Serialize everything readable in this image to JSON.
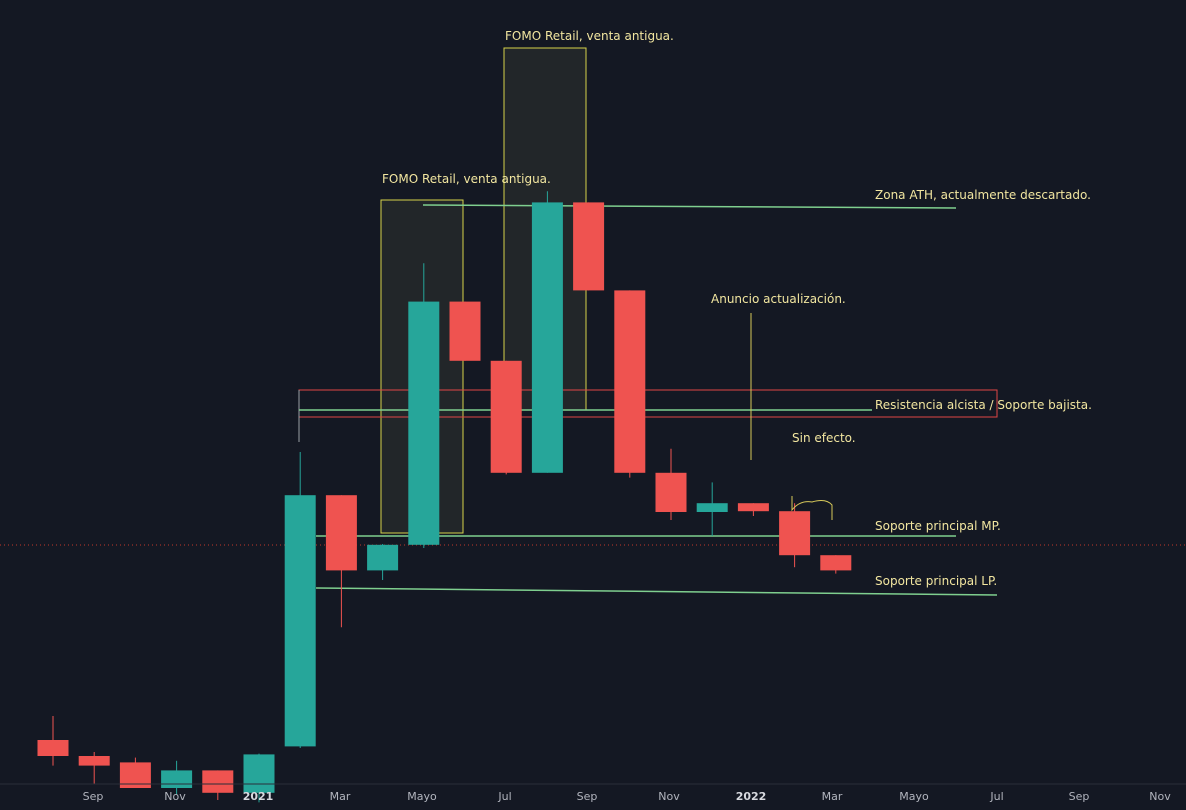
{
  "chart_data": {
    "type": "candlestick",
    "interval": "monthly",
    "colors": {
      "up": "#26a69a",
      "down": "#ef5350",
      "background": "#141823",
      "annotation": "#f2e6a0",
      "line": "#7fcf8f",
      "zone": "#e04646",
      "box": "#d6d24a"
    },
    "x_axis": {
      "labels": [
        "Sep",
        "Nov",
        "2021",
        "Mar",
        "Mayo",
        "Jul",
        "Sep",
        "Nov",
        "2022",
        "Mar",
        "Mayo",
        "Jul",
        "Sep",
        "Nov"
      ],
      "year_labels": [
        "2021",
        "2022"
      ]
    },
    "candles": [
      {
        "date": "2020-08",
        "open": 700,
        "high": 730,
        "low": 668,
        "close": 680,
        "dir": "down"
      },
      {
        "date": "2020-09",
        "open": 680,
        "high": 685,
        "low": 645,
        "close": 668,
        "dir": "down"
      },
      {
        "date": "2020-10",
        "open": 672,
        "high": 678,
        "low": 640,
        "close": 640,
        "dir": "down"
      },
      {
        "date": "2020-11",
        "open": 640,
        "high": 674,
        "low": 632,
        "close": 662,
        "dir": "up"
      },
      {
        "date": "2020-12",
        "open": 662,
        "high": 662,
        "low": 625,
        "close": 634,
        "dir": "down"
      },
      {
        "date": "2021-01",
        "open": 634,
        "high": 683,
        "low": 622,
        "close": 682,
        "dir": "up"
      },
      {
        "date": "2021-02",
        "open": 692,
        "high": 1060,
        "low": 690,
        "close": 1006,
        "dir": "up"
      },
      {
        "date": "2021-03",
        "open": 1006,
        "high": 1006,
        "low": 841,
        "close": 912,
        "dir": "down"
      },
      {
        "date": "2021-04",
        "open": 912,
        "high": 945,
        "low": 900,
        "close": 944,
        "dir": "up"
      },
      {
        "date": "2021-05",
        "open": 944,
        "high": 1296,
        "low": 940,
        "close": 1248,
        "dir": "up"
      },
      {
        "date": "2021-06",
        "open": 1248,
        "high": 1248,
        "low": 1174,
        "close": 1174,
        "dir": "down"
      },
      {
        "date": "2021-07",
        "open": 1174,
        "high": 1174,
        "low": 1032,
        "close": 1034,
        "dir": "down"
      },
      {
        "date": "2021-08",
        "open": 1034,
        "high": 1386,
        "low": 1034,
        "close": 1372,
        "dir": "up"
      },
      {
        "date": "2021-09",
        "open": 1372,
        "high": 1372,
        "low": 1262,
        "close": 1262,
        "dir": "down"
      },
      {
        "date": "2021-10",
        "open": 1262,
        "high": 1262,
        "low": 1028,
        "close": 1034,
        "dir": "down"
      },
      {
        "date": "2021-11",
        "open": 1034,
        "high": 1064,
        "low": 975,
        "close": 985,
        "dir": "down"
      },
      {
        "date": "2021-12",
        "open": 985,
        "high": 1022,
        "low": 955,
        "close": 996,
        "dir": "up"
      },
      {
        "date": "2022-01",
        "open": 996,
        "high": 996,
        "low": 980,
        "close": 986,
        "dir": "down"
      },
      {
        "date": "2022-02",
        "open": 986,
        "high": 996,
        "low": 916,
        "close": 931,
        "dir": "down"
      },
      {
        "date": "2022-03",
        "open": 931,
        "high": 931,
        "low": 908,
        "close": 912,
        "dir": "down"
      }
    ],
    "annotations": [
      {
        "text": "FOMO Retail, venta antigua."
      },
      {
        "text": "FOMO Retail, venta antigua."
      },
      {
        "text": "Zona ATH, actualmente descartado."
      },
      {
        "text": "Anuncio actualización."
      },
      {
        "text": "Resistencia alcista / Soporte bajista."
      },
      {
        "text": "Sin efecto."
      },
      {
        "text": "Soporte principal MP."
      },
      {
        "text": "Soporte principal LP."
      }
    ]
  }
}
